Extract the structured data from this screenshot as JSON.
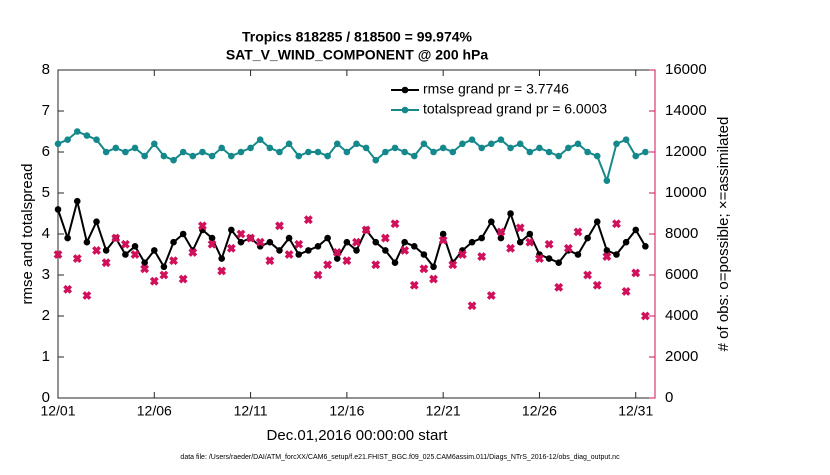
{
  "chart_data": {
    "type": "line",
    "title": "Tropics 818285 / 818500 = 99.974%",
    "subtitle": "SAT_V_WIND_COMPONENT @ 200 hPa",
    "xlabel": "Dec.01,2016 00:00:00 start",
    "ylabel": "rmse and totalspread",
    "y2label": "# of obs: o=possible; ×=assimilated",
    "footnote": "data file: /Users/raeder/DAI/ATM_forcXX/CAM6_setup/f.e21.FHIST_BGC.f09_025.CAM6assim.011/Diags_NTrS_2016-12/obs_diag_output.nc",
    "x": [
      0,
      0.5,
      1,
      1.5,
      2,
      2.5,
      3,
      3.5,
      4,
      4.5,
      5,
      5.5,
      6,
      6.5,
      7,
      7.5,
      8,
      8.5,
      9,
      9.5,
      10,
      10.5,
      11,
      11.5,
      12,
      12.5,
      13,
      13.5,
      14,
      14.5,
      15,
      15.5,
      16,
      16.5,
      17,
      17.5,
      18,
      18.5,
      19,
      19.5,
      20,
      20.5,
      21,
      21.5,
      22,
      22.5,
      23,
      23.5,
      24,
      24.5,
      25,
      25.5,
      26,
      26.5,
      27,
      27.5,
      28,
      28.5,
      29,
      29.5,
      30,
      30.5
    ],
    "xlim": [
      0,
      31
    ],
    "xticks": [
      {
        "value": 0,
        "label": "12/01"
      },
      {
        "value": 5,
        "label": "12/06"
      },
      {
        "value": 10,
        "label": "12/11"
      },
      {
        "value": 15,
        "label": "12/16"
      },
      {
        "value": 20,
        "label": "12/21"
      },
      {
        "value": 25,
        "label": "12/26"
      },
      {
        "value": 30,
        "label": "12/31"
      }
    ],
    "ylim": [
      0,
      8
    ],
    "yticks": [
      0,
      1,
      2,
      3,
      4,
      5,
      6,
      7,
      8
    ],
    "y2lim": [
      0,
      16000
    ],
    "y2ticks": [
      0,
      2000,
      4000,
      6000,
      8000,
      10000,
      12000,
      14000,
      16000
    ],
    "y2_color": "#d0105a",
    "legend_position": "upper right",
    "legend_text_color": "#0a4cf0",
    "series": [
      {
        "name": "rmse grand pr = 3.7746",
        "color": "#000000",
        "mode": "lines+markers",
        "values": [
          4.6,
          3.9,
          4.8,
          3.8,
          4.3,
          3.6,
          3.9,
          3.5,
          3.7,
          3.3,
          3.6,
          3.2,
          3.8,
          4.0,
          3.6,
          4.1,
          3.9,
          3.4,
          4.1,
          3.8,
          3.9,
          3.7,
          3.8,
          3.6,
          3.9,
          3.5,
          3.6,
          3.7,
          3.9,
          3.4,
          3.8,
          3.6,
          4.1,
          3.8,
          3.6,
          3.3,
          3.8,
          3.7,
          3.5,
          3.2,
          4.0,
          3.3,
          3.6,
          3.8,
          3.9,
          4.3,
          3.9,
          4.5,
          3.8,
          4.0,
          3.5,
          3.4,
          3.3,
          3.6,
          3.5,
          3.9,
          4.3,
          3.6,
          3.5,
          3.8,
          4.1,
          3.7
        ]
      },
      {
        "name": "totalspread grand pr = 6.0003",
        "color": "#14888a",
        "mode": "lines+markers",
        "values": [
          6.2,
          6.3,
          6.5,
          6.4,
          6.3,
          6.0,
          6.1,
          6.0,
          6.1,
          5.9,
          6.2,
          5.9,
          5.8,
          6.0,
          5.9,
          6.0,
          5.9,
          6.1,
          5.9,
          6.0,
          6.1,
          6.3,
          6.1,
          6.0,
          6.2,
          5.9,
          6.0,
          6.0,
          5.9,
          6.2,
          6.0,
          6.2,
          6.1,
          5.8,
          6.0,
          6.1,
          6.0,
          5.9,
          6.2,
          6.0,
          6.1,
          6.0,
          6.2,
          6.3,
          6.1,
          6.2,
          6.3,
          6.1,
          6.2,
          6.0,
          6.1,
          6.0,
          5.9,
          6.1,
          6.2,
          6.0,
          5.9,
          5.3,
          6.2,
          6.3,
          5.9,
          6.0
        ]
      },
      {
        "color": "#d0105a",
        "mode": "markers",
        "axis": "y2",
        "values": [
          7000,
          5300,
          6800,
          5000,
          7200,
          6600,
          7800,
          7500,
          7000,
          6300,
          5700,
          6000,
          6700,
          5800,
          7100,
          8400,
          7500,
          6200,
          7300,
          8000,
          7800,
          7600,
          6700,
          8400,
          7000,
          7500,
          8700,
          6000,
          6500,
          7100,
          6700,
          7600,
          8200,
          6500,
          7800,
          8500,
          7200,
          5500,
          6300,
          5800,
          7700,
          6500,
          7000,
          4500,
          6900,
          5000,
          8100,
          7300,
          8300,
          7600,
          6800,
          7500,
          5400,
          7300,
          8100,
          6000,
          5500,
          6900,
          8500,
          5200,
          6100,
          4000
        ]
      }
    ]
  }
}
